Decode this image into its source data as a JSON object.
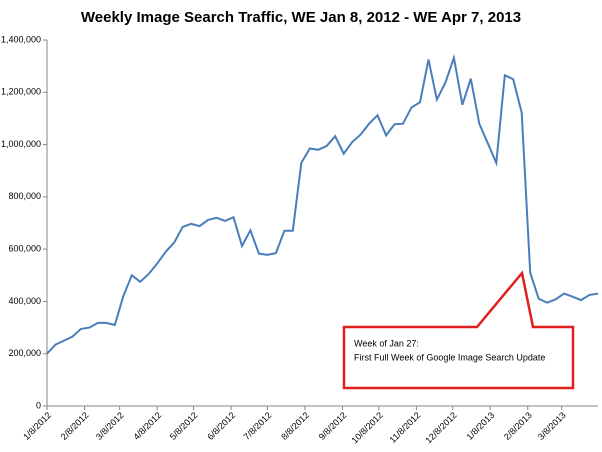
{
  "chart_data": {
    "type": "line",
    "title": "Weekly Image Search Traffic, WE Jan 8, 2012 - WE Apr 7, 2013",
    "x": [
      "1/8/2012",
      "1/15/2012",
      "1/22/2012",
      "1/29/2012",
      "2/5/2012",
      "2/12/2012",
      "2/19/2012",
      "2/26/2012",
      "3/4/2012",
      "3/11/2012",
      "3/18/2012",
      "3/25/2012",
      "4/1/2012",
      "4/8/2012",
      "4/15/2012",
      "4/22/2012",
      "4/29/2012",
      "5/6/2012",
      "5/13/2012",
      "5/20/2012",
      "5/27/2012",
      "6/3/2012",
      "6/10/2012",
      "6/17/2012",
      "6/24/2012",
      "7/1/2012",
      "7/8/2012",
      "7/15/2012",
      "7/22/2012",
      "7/29/2012",
      "8/5/2012",
      "8/12/2012",
      "8/19/2012",
      "8/26/2012",
      "9/2/2012",
      "9/9/2012",
      "9/16/2012",
      "9/23/2012",
      "9/30/2012",
      "10/7/2012",
      "10/14/2012",
      "10/21/2012",
      "10/28/2012",
      "11/4/2012",
      "11/11/2012",
      "11/18/2012",
      "11/25/2012",
      "12/2/2012",
      "12/9/2012",
      "12/16/2012",
      "12/23/2012",
      "12/30/2012",
      "1/6/2013",
      "1/13/2013",
      "1/20/2013",
      "1/27/2013",
      "2/3/2013",
      "2/10/2013",
      "2/17/2013",
      "2/24/2013",
      "3/3/2013",
      "3/10/2013",
      "3/17/2013",
      "3/24/2013",
      "3/31/2013",
      "4/7/2013"
    ],
    "values": [
      200000,
      235000,
      250000,
      265000,
      295000,
      300000,
      318000,
      318000,
      310000,
      420000,
      500000,
      475000,
      505000,
      545000,
      590000,
      625000,
      685000,
      697000,
      688000,
      712000,
      720000,
      708000,
      722000,
      612000,
      672000,
      583000,
      578000,
      585000,
      670000,
      670000,
      930000,
      985000,
      980000,
      995000,
      1032000,
      965000,
      1010000,
      1038000,
      1080000,
      1112000,
      1035000,
      1078000,
      1080000,
      1142000,
      1162000,
      1325000,
      1172000,
      1237000,
      1332000,
      1152000,
      1252000,
      1080000,
      1005000,
      930000,
      1265000,
      1250000,
      1122000,
      510000,
      410000,
      395000,
      408000,
      430000,
      418000,
      405000,
      425000,
      430000
    ],
    "color": "#4a7ebb",
    "xlim": [
      "1/8/2012",
      "4/7/2013"
    ],
    "xticks": [
      "1/8/2012",
      "2/8/2012",
      "3/8/2012",
      "4/8/2012",
      "5/8/2012",
      "6/8/2012",
      "7/8/2012",
      "8/8/2012",
      "9/8/2012",
      "10/8/2012",
      "11/8/2012",
      "12/8/2012",
      "1/8/2013",
      "2/8/2013",
      "3/8/2013"
    ],
    "ylim": [
      0,
      1400000
    ],
    "yticks": [
      0,
      {
        "value": 200000,
        "label": "200,000"
      },
      {
        "value": 400000,
        "label": "400,000"
      },
      {
        "value": 600000,
        "label": "600,000"
      },
      {
        "value": 800000,
        "label": "800,000"
      },
      {
        "value": 1000000,
        "label": "1,000,000"
      },
      {
        "value": 1200000,
        "label": "1,200,000"
      },
      {
        "value": 1400000,
        "label": "1,400,000"
      }
    ],
    "annotation": {
      "lines": [
        "Week of Jan 27:",
        "First Full Week of Google Image Search Update"
      ],
      "color": "#e0201c"
    }
  }
}
